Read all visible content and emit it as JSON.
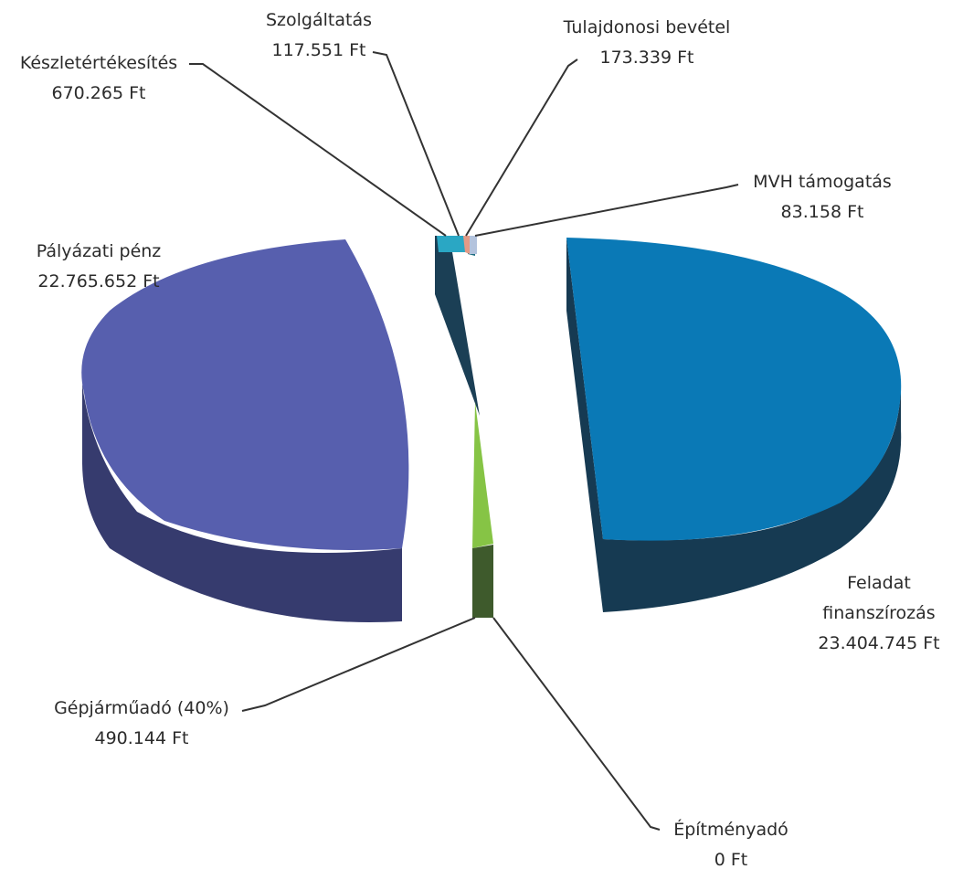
{
  "chart_data": {
    "type": "pie",
    "style": "exploded 3D pie",
    "currency": "Ft",
    "slices": [
      {
        "name": "Feladat finanszírozás",
        "value": 23404745,
        "value_label": "23.404.745 Ft",
        "color": "#0a79b6"
      },
      {
        "name": "Pályázati pénz",
        "value": 22765652,
        "value_label": "22.765.652 Ft",
        "color": "#575fae"
      },
      {
        "name": "Gépjárműadó (40%)",
        "value": 490144,
        "value_label": "490.144 Ft",
        "color": "#86c445"
      },
      {
        "name": "Építményadó",
        "value": 0,
        "value_label": "0 Ft",
        "color": "#3e5a2c"
      },
      {
        "name": "Készletértékesítés",
        "value": 670265,
        "value_label": "670.265 Ft",
        "color": "#1b3f55"
      },
      {
        "name": "Szolgáltatás",
        "value": 117551,
        "value_label": "117.551 Ft",
        "color": "#2aa7c4"
      },
      {
        "name": "Tulajdonosi bevétel",
        "value": 173339,
        "value_label": "173.339 Ft",
        "color": "#e39a86"
      },
      {
        "name": "MVH támogatás",
        "value": 83158,
        "value_label": "83.158 Ft",
        "color": "#b3c3dd"
      }
    ]
  }
}
